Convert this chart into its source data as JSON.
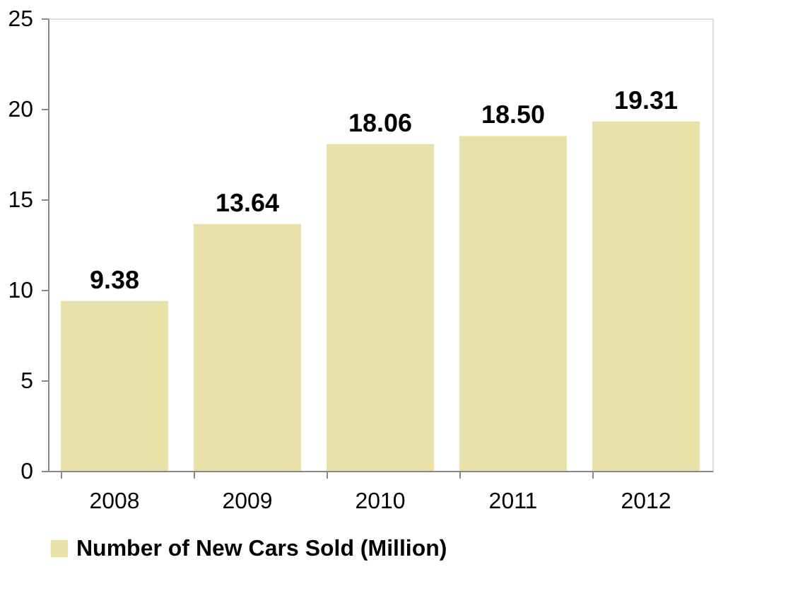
{
  "chart_data": {
    "type": "bar",
    "categories": [
      "2008",
      "2009",
      "2010",
      "2011",
      "2012"
    ],
    "series": [
      {
        "name": "Number of New Cars Sold (Million)",
        "color": "#e8e0a8",
        "values": [
          9.38,
          13.64,
          18.06,
          18.5,
          19.31
        ],
        "value_labels": [
          "9.38",
          "13.64",
          "18.06",
          "18.50",
          "19.31"
        ]
      }
    ],
    "ylim": [
      0,
      25
    ],
    "yticks": [
      0,
      5,
      10,
      15,
      20,
      25
    ],
    "grid": false,
    "legend": "bottom"
  }
}
